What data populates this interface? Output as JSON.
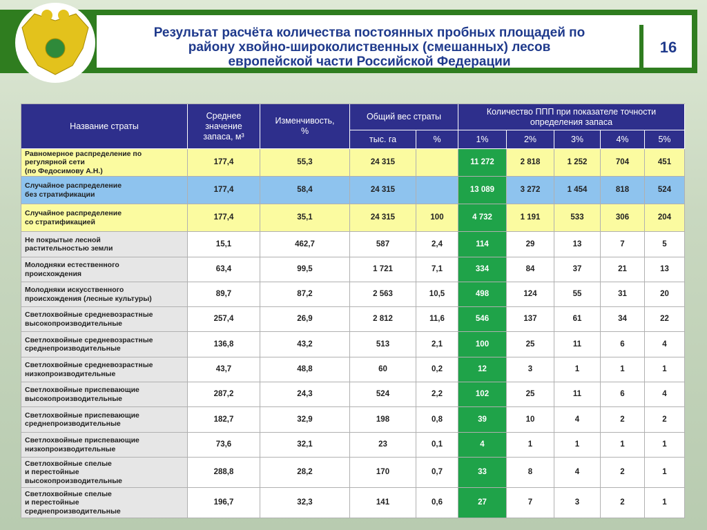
{
  "header": {
    "title": [
      "Результат расчёта количества постоянных пробных площадей по",
      "району хвойно-широколиственных (смешанных) лесов",
      "европейской части Российской Федерации"
    ],
    "page": "16"
  },
  "table": {
    "head": {
      "name": "Название страты",
      "mean": [
        "Среднее",
        "значение",
        "запаса, м³"
      ],
      "var": [
        "Изменчивость,",
        "%"
      ],
      "weight": "Общий вес страты",
      "weight_sub": [
        "тыс. га",
        "%"
      ],
      "count": [
        "Количество ППП при показателе точности",
        "определения запаса"
      ],
      "count_sub": [
        "1%",
        "2%",
        "3%",
        "4%",
        "5%"
      ]
    },
    "rows": [
      [
        [
          "Равномерное распределение по",
          "регулярной сети",
          "(по Федосимову А.Н.)"
        ],
        "177,4",
        "55,3",
        "24 315",
        null,
        "11 272",
        "2 818",
        "1 252",
        "704",
        "451"
      ],
      [
        [
          "Случайное распределение",
          "без стратификации"
        ],
        "177,4",
        "58,4",
        "24 315",
        null,
        "13 089",
        "3 272",
        "1 454",
        "818",
        "524"
      ],
      [
        [
          "Случайное распределение",
          "со стратификацией"
        ],
        "177,4",
        "35,1",
        "24 315",
        "100",
        "4 732",
        "1 191",
        "533",
        "306",
        "204"
      ],
      [
        [
          "Не покрытые лесной",
          "растительностью земли"
        ],
        "15,1",
        "462,7",
        "587",
        "2,4",
        "114",
        "29",
        "13",
        "7",
        "5"
      ],
      [
        [
          "Молодняки естественного",
          "происхождения"
        ],
        "63,4",
        "99,5",
        "1 721",
        "7,1",
        "334",
        "84",
        "37",
        "21",
        "13"
      ],
      [
        [
          "Молодняки искусственного",
          "происхождения (лесные культуры)"
        ],
        "89,7",
        "87,2",
        "2 563",
        "10,5",
        "498",
        "124",
        "55",
        "31",
        "20"
      ],
      [
        [
          "Светлохвойные средневозрастные",
          "высокопроизводительные"
        ],
        "257,4",
        "26,9",
        "2 812",
        "11,6",
        "546",
        "137",
        "61",
        "34",
        "22"
      ],
      [
        [
          "Светлохвойные средневозрастные",
          "среднепроизводительные"
        ],
        "136,8",
        "43,2",
        "513",
        "2,1",
        "100",
        "25",
        "11",
        "6",
        "4"
      ],
      [
        [
          "Светлохвойные средневозрастные",
          "низкопроизводительные"
        ],
        "43,7",
        "48,8",
        "60",
        "0,2",
        "12",
        "3",
        "1",
        "1",
        "1"
      ],
      [
        [
          "Светлохвойные приспевающие",
          "высокопроизводительные"
        ],
        "287,2",
        "24,3",
        "524",
        "2,2",
        "102",
        "25",
        "11",
        "6",
        "4"
      ],
      [
        [
          "Светлохвойные приспевающие",
          "среднепроизводительные"
        ],
        "182,7",
        "32,9",
        "198",
        "0,8",
        "39",
        "10",
        "4",
        "2",
        "2"
      ],
      [
        [
          "Светлохвойные приспевающие",
          "низкопроизводительные"
        ],
        "73,6",
        "32,1",
        "23",
        "0,1",
        "4",
        "1",
        "1",
        "1",
        "1"
      ],
      [
        [
          "Светлохвойные спелые",
          "и перестойные",
          "высокопроизводительные"
        ],
        "288,8",
        "28,2",
        "170",
        "0,7",
        "33",
        "8",
        "4",
        "2",
        "1"
      ],
      [
        [
          "Светлохвойные спелые",
          "и перестойные",
          "среднепроизводительные"
        ],
        "196,7",
        "32,3",
        "141",
        "0,6",
        "27",
        "7",
        "3",
        "2",
        "1"
      ]
    ]
  }
}
